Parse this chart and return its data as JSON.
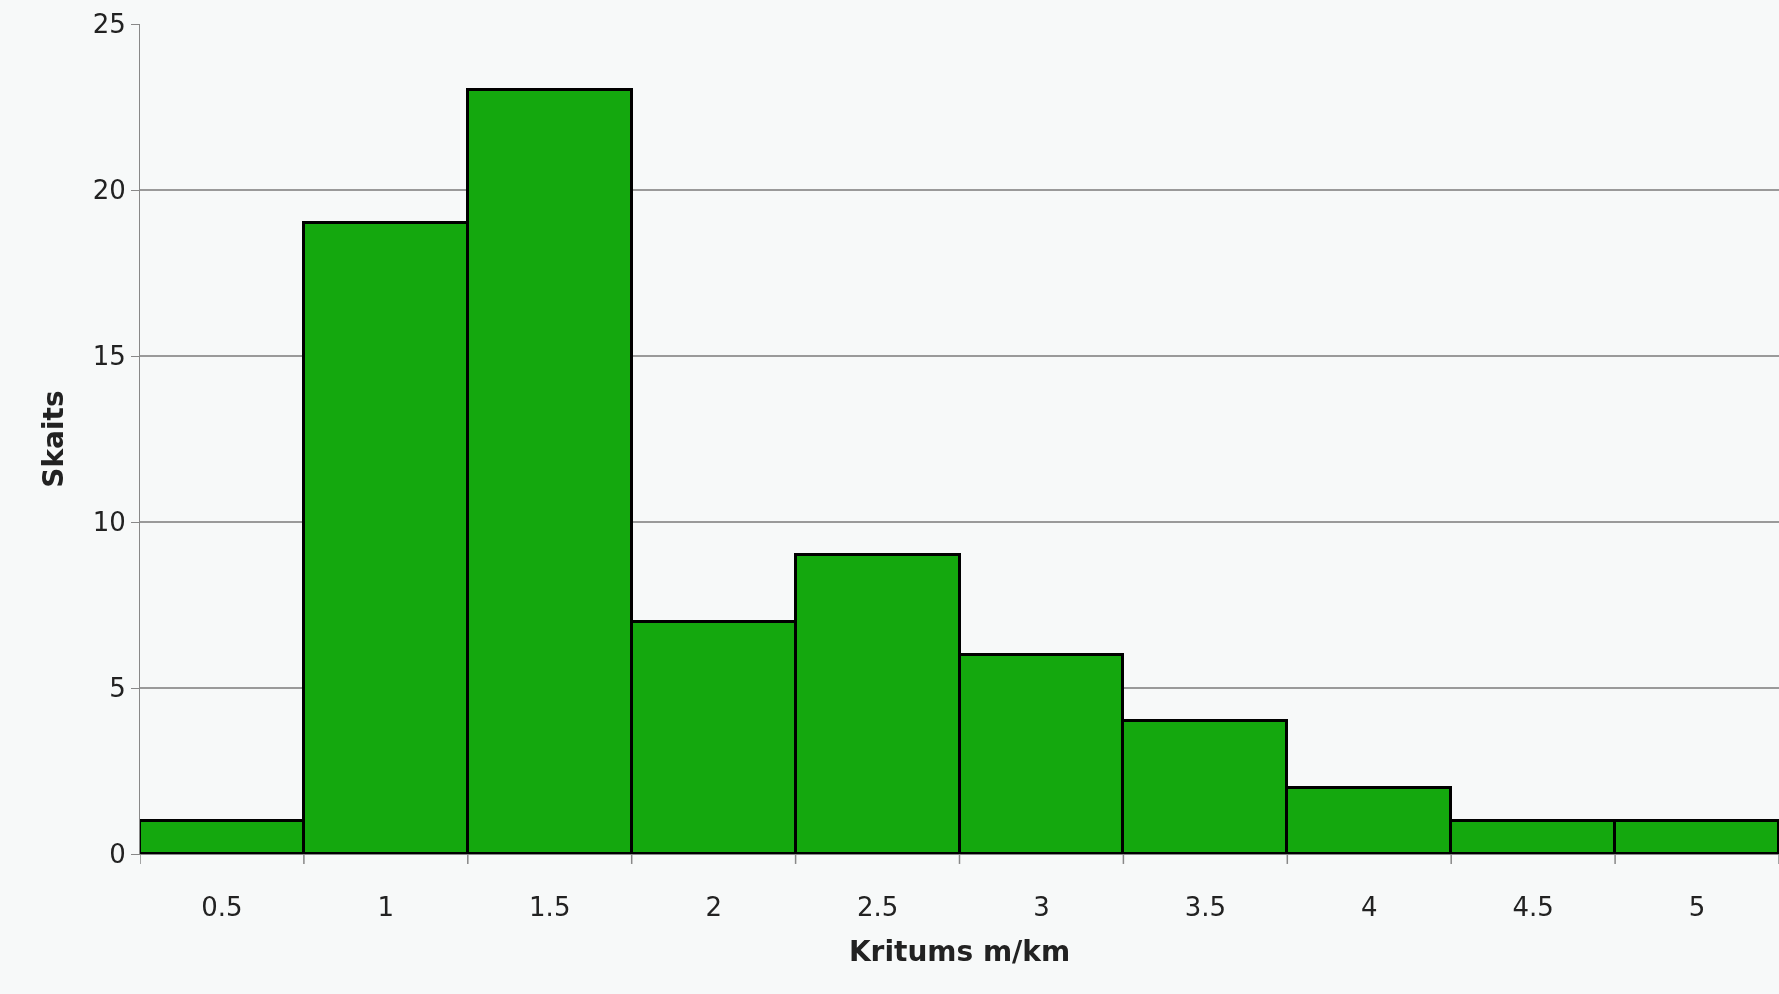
{
  "chart_data": {
    "type": "bar",
    "xlabel": "Kritums m/km",
    "ylabel": "Skaits",
    "categories": [
      "0.5",
      "1",
      "1.5",
      "2",
      "2.5",
      "3",
      "3.5",
      "4",
      "4.5",
      "5"
    ],
    "values": [
      1,
      19,
      23,
      7,
      9,
      6,
      4,
      2,
      1,
      1
    ],
    "color": "#14a80e",
    "ylim": [
      0,
      25
    ],
    "yticks": [
      0,
      5,
      10,
      15,
      20,
      25
    ],
    "grid": "y"
  }
}
